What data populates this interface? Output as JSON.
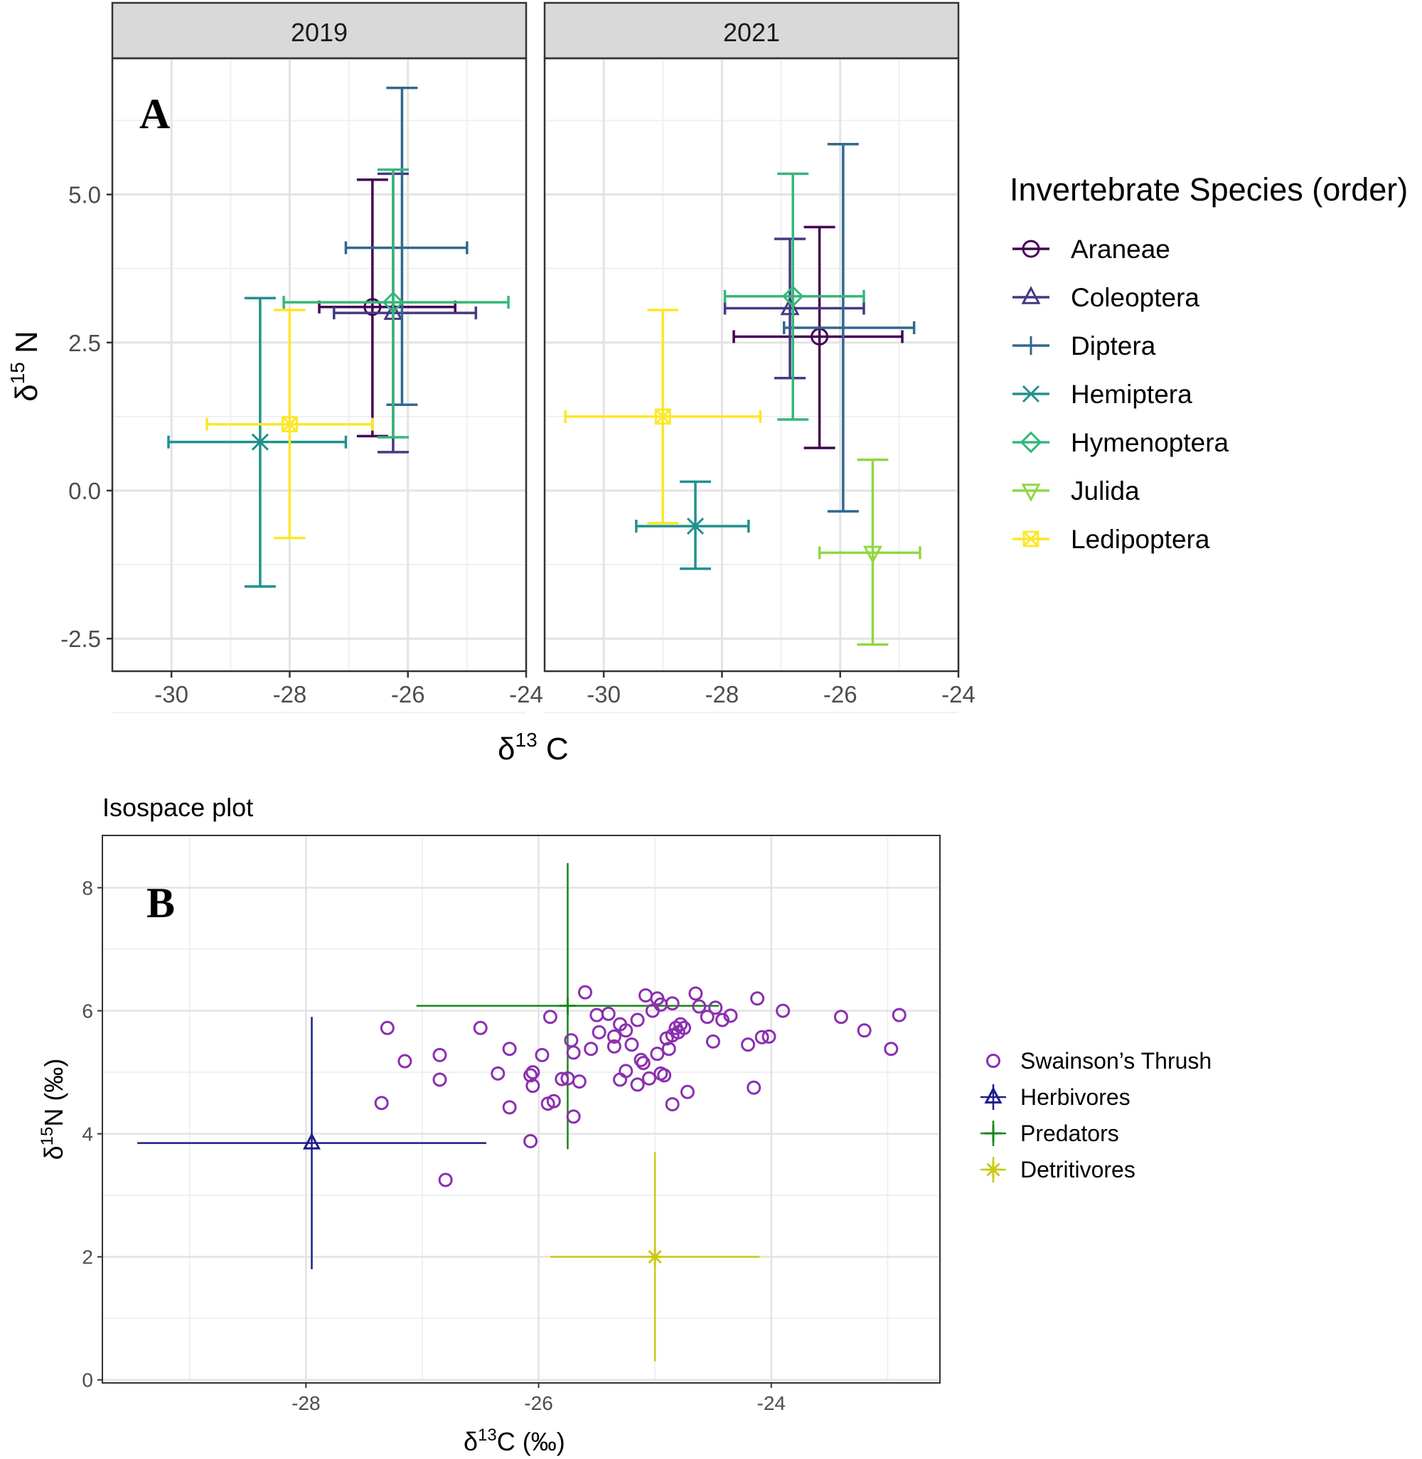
{
  "chart_data": [
    {
      "type": "scatter",
      "panel_label": "A",
      "facets": [
        "2019",
        "2021"
      ],
      "xlabel": "δ13C",
      "ylabel": "δ15N",
      "xlim": [
        -31,
        -24
      ],
      "ylim": [
        -3.05,
        7.3
      ],
      "x_ticks": [
        "-30",
        "-28",
        "-26",
        "-24"
      ],
      "y_ticks": [
        "-2.5",
        "0.0",
        "2.5",
        "5.0"
      ],
      "y_tick_values": [
        -2.5,
        0,
        2.5,
        5
      ],
      "x_tick_values": [
        -30,
        -28,
        -26,
        -24
      ],
      "grid": true,
      "legend_title": "Invertebrate Species (order)",
      "legend_position": "right",
      "series": [
        {
          "name": "Araneae",
          "color": "#440154",
          "shape": "circle",
          "points": [
            {
              "facet": "2019",
              "x": -26.6,
              "y": 3.1,
              "xmin": -27.5,
              "xmax": -25.2,
              "ymin": 0.92,
              "ymax": 5.25
            },
            {
              "facet": "2021",
              "x": -26.35,
              "y": 2.6,
              "xmin": -27.8,
              "xmax": -24.95,
              "ymin": 0.72,
              "ymax": 4.45
            }
          ]
        },
        {
          "name": "Coleoptera",
          "color": "#443983",
          "shape": "triangle",
          "points": [
            {
              "facet": "2019",
              "x": -26.25,
              "y": 3.0,
              "xmin": -27.25,
              "xmax": -24.85,
              "ymin": 0.65,
              "ymax": 5.35
            },
            {
              "facet": "2021",
              "x": -26.85,
              "y": 3.08,
              "xmin": -27.95,
              "xmax": -25.6,
              "ymin": 1.9,
              "ymax": 4.25
            }
          ]
        },
        {
          "name": "Diptera",
          "color": "#31688e",
          "shape": "plus",
          "points": [
            {
              "facet": "2019",
              "x": -26.1,
              "y": 4.1,
              "xmin": -27.05,
              "xmax": -25.0,
              "ymin": 1.45,
              "ymax": 6.8
            },
            {
              "facet": "2021",
              "x": -25.95,
              "y": 2.75,
              "xmin": -26.95,
              "xmax": -24.75,
              "ymin": -0.35,
              "ymax": 5.85
            }
          ]
        },
        {
          "name": "Hemiptera",
          "color": "#21918c",
          "shape": "cross",
          "points": [
            {
              "facet": "2019",
              "x": -28.5,
              "y": 0.82,
              "xmin": -30.05,
              "xmax": -27.05,
              "ymin": -1.62,
              "ymax": 3.25
            },
            {
              "facet": "2021",
              "x": -28.45,
              "y": -0.6,
              "xmin": -29.45,
              "xmax": -27.55,
              "ymin": -1.32,
              "ymax": 0.15
            }
          ]
        },
        {
          "name": "Hymenoptera",
          "color": "#35b779",
          "shape": "diamond",
          "points": [
            {
              "facet": "2019",
              "x": -26.25,
              "y": 3.18,
              "xmin": -28.1,
              "xmax": -24.3,
              "ymin": 0.9,
              "ymax": 5.42
            },
            {
              "facet": "2021",
              "x": -26.8,
              "y": 3.28,
              "xmin": -27.95,
              "xmax": -25.6,
              "ymin": 1.2,
              "ymax": 5.35
            }
          ]
        },
        {
          "name": "Julida",
          "color": "#90d743",
          "shape": "triangle-down",
          "points": [
            {
              "facet": "2021",
              "x": -25.45,
              "y": -1.05,
              "xmin": -26.35,
              "xmax": -24.65,
              "ymin": -2.6,
              "ymax": 0.52
            }
          ]
        },
        {
          "name": "Ledipoptera",
          "color": "#fde725",
          "shape": "square-cross",
          "points": [
            {
              "facet": "2019",
              "x": -28.0,
              "y": 1.12,
              "xmin": -29.4,
              "xmax": -26.6,
              "ymin": -0.8,
              "ymax": 3.05
            },
            {
              "facet": "2021",
              "x": -29.0,
              "y": 1.25,
              "xmin": -30.65,
              "xmax": -27.35,
              "ymin": -0.55,
              "ymax": 3.05
            }
          ]
        }
      ]
    },
    {
      "type": "scatter",
      "panel_label": "B",
      "title": "Isospace plot",
      "xlabel": "δ13C (‰)",
      "ylabel": "δ15N (‰)",
      "xlim": [
        -29.75,
        -22.55
      ],
      "ylim": [
        -0.05,
        8.85
      ],
      "x_ticks": [
        "-28",
        "-26",
        "-24"
      ],
      "y_ticks": [
        "0",
        "2",
        "4",
        "6",
        "8"
      ],
      "x_tick_values": [
        -28,
        -26,
        -24
      ],
      "y_tick_values": [
        0,
        2,
        4,
        6,
        8
      ],
      "grid": true,
      "legend_position": "right",
      "thrush": {
        "name": "Swainson’s Thrush",
        "color": "#8b2fb0",
        "points": [
          [
            -27.3,
            5.72
          ],
          [
            -27.15,
            5.18
          ],
          [
            -27.35,
            4.5
          ],
          [
            -26.85,
            5.28
          ],
          [
            -26.85,
            4.88
          ],
          [
            -26.8,
            3.25
          ],
          [
            -26.5,
            5.72
          ],
          [
            -26.35,
            4.98
          ],
          [
            -26.25,
            5.38
          ],
          [
            -26.25,
            4.43
          ],
          [
            -26.05,
            5.0
          ],
          [
            -26.07,
            4.95
          ],
          [
            -26.05,
            4.78
          ],
          [
            -25.97,
            5.28
          ],
          [
            -26.07,
            3.88
          ],
          [
            -25.9,
            5.9
          ],
          [
            -25.92,
            4.49
          ],
          [
            -25.87,
            4.53
          ],
          [
            -25.8,
            4.89
          ],
          [
            -25.75,
            4.9
          ],
          [
            -25.72,
            5.52
          ],
          [
            -25.7,
            5.32
          ],
          [
            -25.7,
            4.28
          ],
          [
            -25.65,
            4.85
          ],
          [
            -25.6,
            6.3
          ],
          [
            -25.55,
            5.38
          ],
          [
            -25.5,
            5.93
          ],
          [
            -25.48,
            5.65
          ],
          [
            -25.4,
            5.95
          ],
          [
            -25.35,
            5.42
          ],
          [
            -25.35,
            5.58
          ],
          [
            -25.3,
            5.78
          ],
          [
            -25.3,
            4.88
          ],
          [
            -25.25,
            5.02
          ],
          [
            -25.25,
            5.68
          ],
          [
            -25.2,
            5.45
          ],
          [
            -25.15,
            5.85
          ],
          [
            -25.15,
            4.8
          ],
          [
            -25.12,
            5.2
          ],
          [
            -25.1,
            5.15
          ],
          [
            -25.05,
            4.9
          ],
          [
            -25.08,
            6.25
          ],
          [
            -25.02,
            6.0
          ],
          [
            -24.98,
            6.2
          ],
          [
            -24.95,
            6.1
          ],
          [
            -24.98,
            5.3
          ],
          [
            -24.95,
            4.98
          ],
          [
            -24.92,
            4.95
          ],
          [
            -24.9,
            5.55
          ],
          [
            -24.88,
            5.38
          ],
          [
            -24.85,
            5.6
          ],
          [
            -24.85,
            6.12
          ],
          [
            -24.82,
            5.72
          ],
          [
            -24.8,
            5.65
          ],
          [
            -24.78,
            5.78
          ],
          [
            -24.75,
            5.72
          ],
          [
            -24.72,
            4.68
          ],
          [
            -24.65,
            6.28
          ],
          [
            -24.62,
            6.07
          ],
          [
            -24.55,
            5.9
          ],
          [
            -24.5,
            5.5
          ],
          [
            -24.48,
            6.05
          ],
          [
            -24.42,
            5.85
          ],
          [
            -24.35,
            5.92
          ],
          [
            -24.85,
            4.48
          ],
          [
            -24.2,
            5.45
          ],
          [
            -24.15,
            4.75
          ],
          [
            -24.12,
            6.2
          ],
          [
            -24.08,
            5.57
          ],
          [
            -24.02,
            5.58
          ],
          [
            -23.9,
            6.0
          ],
          [
            -23.4,
            5.9
          ],
          [
            -23.2,
            5.68
          ],
          [
            -22.97,
            5.38
          ],
          [
            -22.9,
            5.93
          ]
        ]
      },
      "series": [
        {
          "name": "Herbivores",
          "color": "#1c1c8c",
          "shape": "triangle",
          "x": -27.95,
          "y": 3.85,
          "xmin": -29.45,
          "xmax": -26.45,
          "ymin": 1.8,
          "ymax": 5.9
        },
        {
          "name": "Predators",
          "color": "#168816",
          "shape": "plus",
          "x": -25.75,
          "y": 6.08,
          "xmin": -27.05,
          "xmax": -24.45,
          "ymin": 3.75,
          "ymax": 8.4
        },
        {
          "name": "Detritivores",
          "color": "#c9c914",
          "shape": "asterisk",
          "x": -25.0,
          "y": 2.0,
          "xmin": -25.9,
          "xmax": -24.1,
          "ymin": 0.3,
          "ymax": 3.7
        }
      ]
    }
  ]
}
